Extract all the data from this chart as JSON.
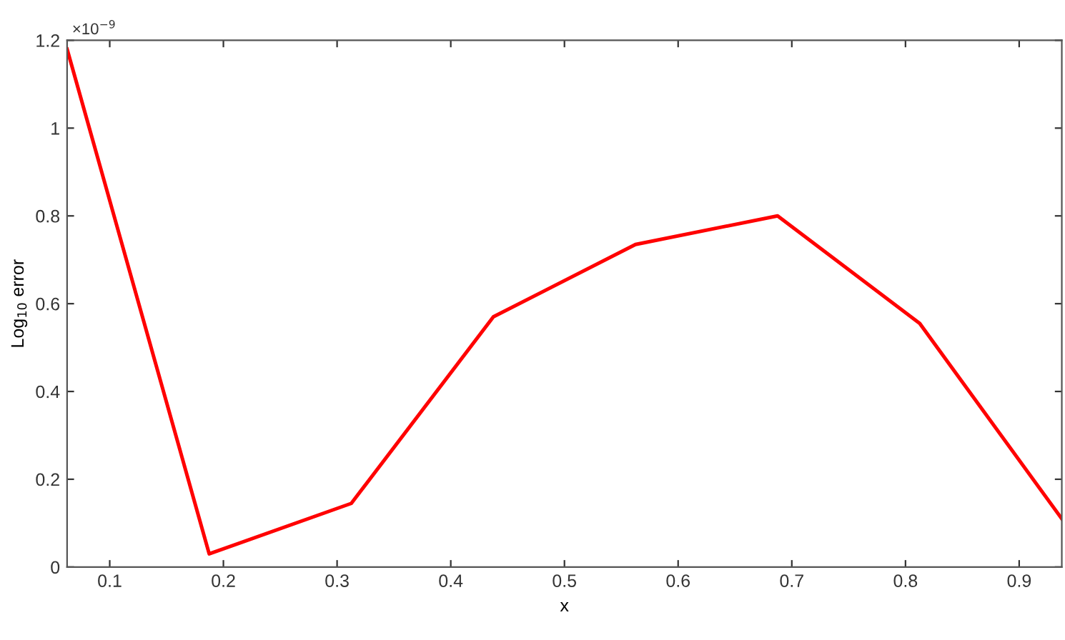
{
  "chart_data": {
    "type": "line",
    "xlabel": "x",
    "ylabel": "Log$_{10}$ error",
    "annotations": [
      "×10$^{−9}$"
    ],
    "x": [
      0.0625,
      0.1875,
      0.3125,
      0.4375,
      0.5625,
      0.6875,
      0.8125,
      0.9375
    ],
    "series": [
      {
        "color": "#ff0000",
        "values": [
          1.18,
          0.03,
          0.145,
          0.57,
          0.735,
          0.8,
          0.555,
          0.11
        ]
      }
    ],
    "xlim": [
      0.0625,
      0.9375
    ],
    "xticks": [
      0.1,
      0.2,
      0.3,
      0.4,
      0.5,
      0.6,
      0.7,
      0.8,
      0.9
    ],
    "ylim": [
      0,
      1.2
    ],
    "yticks": [
      0,
      0.2,
      0.4,
      0.6,
      0.8,
      1,
      1.2
    ],
    "grid": false,
    "legend": false,
    "marker": "none",
    "line_style": "solid"
  }
}
